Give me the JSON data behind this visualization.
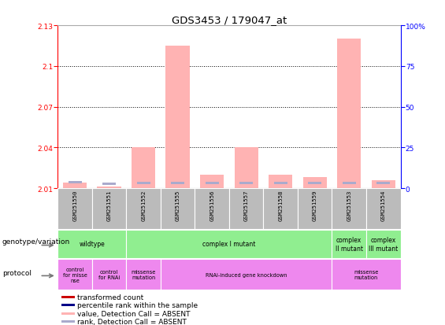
{
  "title": "GDS3453 / 179047_at",
  "samples": [
    "GSM251550",
    "GSM251551",
    "GSM251552",
    "GSM251555",
    "GSM251556",
    "GSM251557",
    "GSM251558",
    "GSM251559",
    "GSM251553",
    "GSM251554"
  ],
  "ylim_left": [
    2.01,
    2.13
  ],
  "ylim_right": [
    0,
    100
  ],
  "yticks_left": [
    2.01,
    2.04,
    2.07,
    2.1,
    2.13
  ],
  "yticks_right": [
    0,
    25,
    50,
    75,
    100
  ],
  "pink_bar_heights": [
    2.014,
    2.011,
    2.04,
    2.115,
    2.02,
    2.04,
    2.02,
    2.018,
    2.12,
    2.016
  ],
  "blue_bar_heights_abs": [
    2.0135,
    2.0125,
    2.013,
    2.013,
    2.013,
    2.013,
    2.013,
    2.013,
    2.013,
    2.013
  ],
  "baseline": 2.01,
  "bg_color": "#ffffff",
  "bar_pink": "#ffb3b3",
  "bar_blue": "#aaaacc",
  "genotype_color": "#90ee90",
  "protocol_color": "#ee88ee",
  "sample_bg": "#bbbbbb",
  "legend_items": [
    {
      "color": "#cc0000",
      "label": "transformed count"
    },
    {
      "color": "#000088",
      "label": "percentile rank within the sample"
    },
    {
      "color": "#ffb3b3",
      "label": "value, Detection Call = ABSENT"
    },
    {
      "color": "#aaaacc",
      "label": "rank, Detection Call = ABSENT"
    }
  ],
  "geno_rows": [
    {
      "label": "wildtype",
      "start": 0,
      "end": 2
    },
    {
      "label": "complex I mutant",
      "start": 2,
      "end": 8
    },
    {
      "label": "complex\nII mutant",
      "start": 8,
      "end": 9
    },
    {
      "label": "complex\nIII mutant",
      "start": 9,
      "end": 10
    }
  ],
  "proto_rows": [
    {
      "label": "control\nfor misse\nnse",
      "start": 0,
      "end": 1
    },
    {
      "label": "control\nfor RNAi",
      "start": 1,
      "end": 2
    },
    {
      "label": "missense\nmutation",
      "start": 2,
      "end": 3
    },
    {
      "label": "RNAi-induced gene knockdown",
      "start": 3,
      "end": 8
    },
    {
      "label": "missense\nmutation",
      "start": 8,
      "end": 10
    }
  ]
}
